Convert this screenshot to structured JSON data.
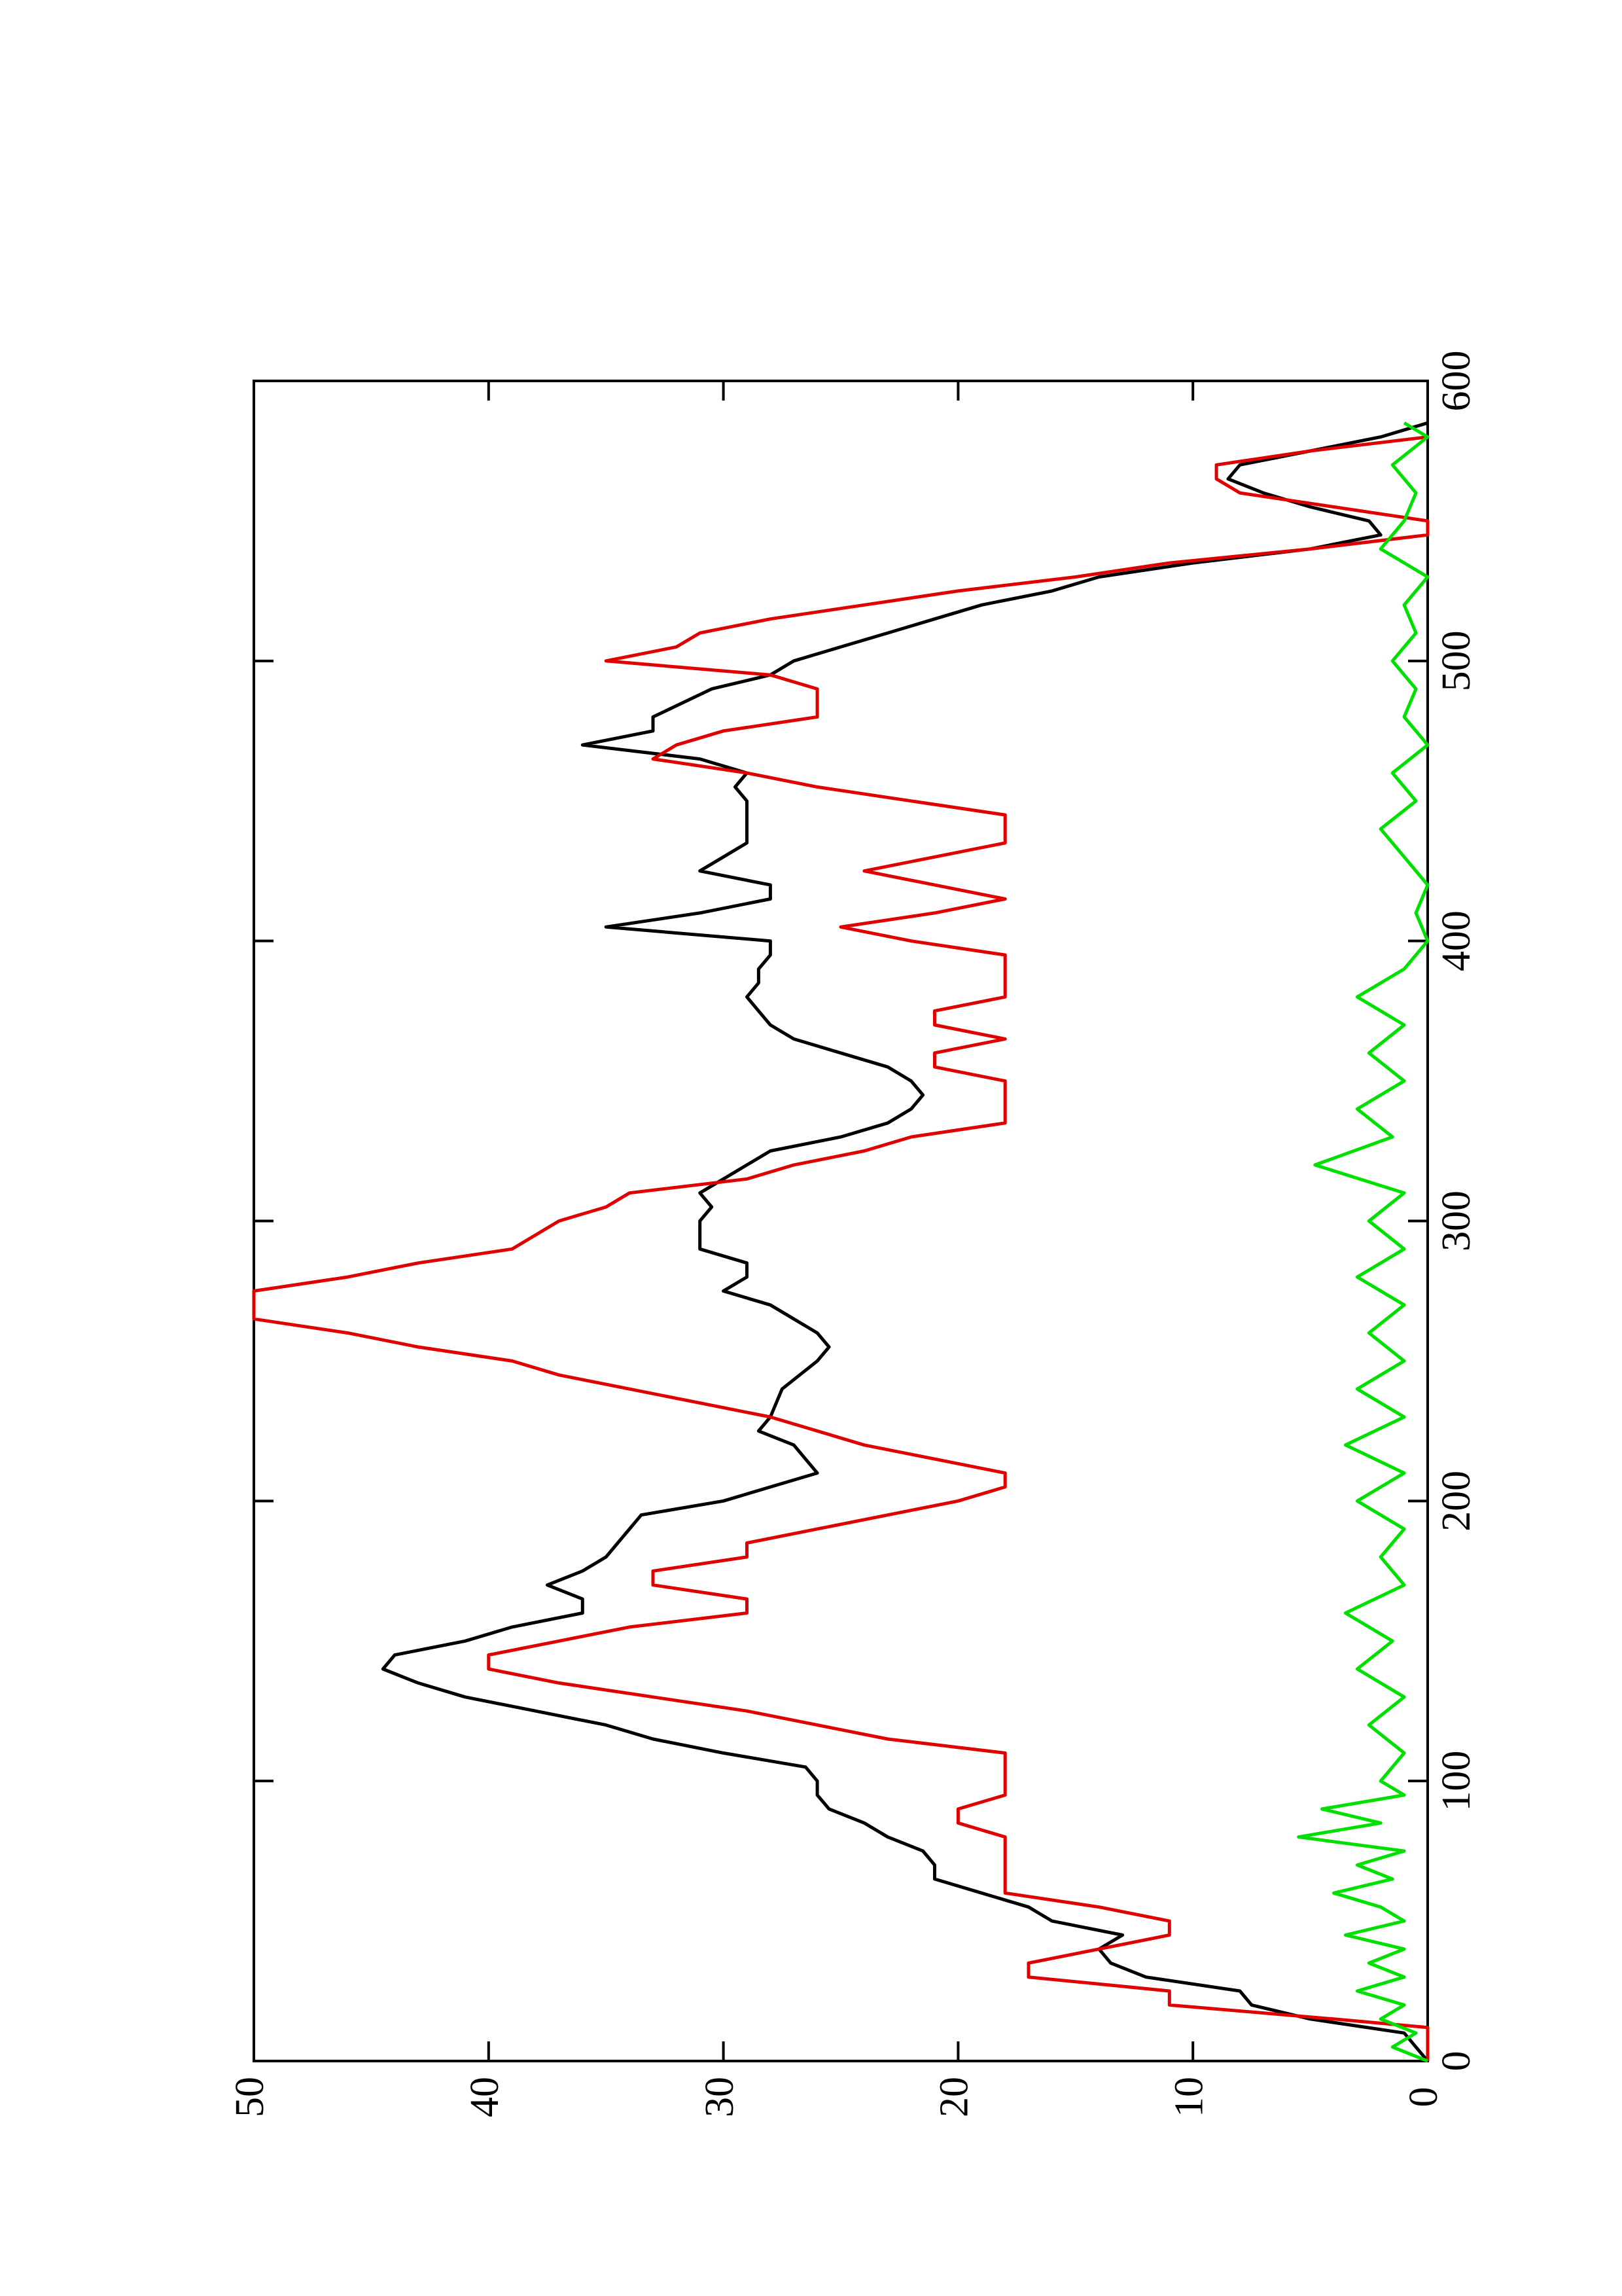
{
  "chart_data": {
    "type": "line",
    "xlim": [
      0,
      600
    ],
    "xticks": [
      0,
      100,
      200,
      300,
      400,
      500,
      600
    ],
    "ylim": [
      0,
      50
    ],
    "yticks": [
      0,
      10,
      20,
      30,
      40,
      50
    ],
    "series": [
      {
        "color": "#000000",
        "x": [
          0,
          10,
          15,
          20,
          25,
          30,
          35,
          40,
          45,
          50,
          55,
          60,
          65,
          70,
          75,
          80,
          85,
          90,
          95,
          100,
          105,
          110,
          115,
          120,
          125,
          130,
          135,
          140,
          145,
          150,
          155,
          160,
          165,
          170,
          175,
          180,
          185,
          190,
          195,
          200,
          205,
          210,
          220,
          225,
          230,
          240,
          250,
          255,
          260,
          265,
          270,
          275,
          280,
          285,
          290,
          300,
          305,
          310,
          315,
          320,
          325,
          330,
          335,
          340,
          345,
          350,
          355,
          360,
          365,
          370,
          375,
          380,
          385,
          390,
          395,
          400,
          405,
          410,
          415,
          420,
          425,
          430,
          435,
          440,
          450,
          455,
          460,
          465,
          470,
          475,
          480,
          490,
          495,
          500,
          505,
          510,
          515,
          520,
          525,
          530,
          535,
          540,
          545,
          550,
          555,
          560,
          565,
          570,
          575,
          580,
          585
        ],
        "values": [
          0,
          1,
          5,
          7.5,
          8,
          12,
          13.5,
          14,
          13,
          16,
          17,
          19,
          21,
          21,
          21.5,
          23,
          24,
          25.5,
          26,
          26,
          26.5,
          30,
          33,
          35,
          38,
          41,
          43,
          44.5,
          44,
          41,
          39,
          36,
          36,
          37.5,
          36,
          35,
          34.5,
          34,
          33.5,
          30,
          28,
          26,
          27,
          28.5,
          28,
          27.5,
          26,
          25.5,
          26,
          27,
          28,
          30,
          29,
          29,
          31,
          31,
          30.5,
          31,
          30,
          29,
          28,
          25,
          23,
          22,
          21.5,
          22,
          23,
          25,
          27,
          28,
          28.5,
          29,
          28.5,
          28.5,
          28,
          28,
          35,
          31,
          28,
          28,
          31,
          30,
          29,
          29,
          29,
          29.5,
          29,
          31,
          36,
          33,
          33,
          30.5,
          28,
          27,
          25,
          23,
          21,
          19,
          16,
          14,
          10,
          5,
          2,
          2.5,
          5,
          7,
          8.5,
          8,
          5,
          2,
          0
        ]
      },
      {
        "color": "#e00000",
        "x": [
          0,
          12,
          15,
          20,
          25,
          30,
          35,
          40,
          45,
          50,
          55,
          60,
          65,
          80,
          85,
          90,
          95,
          110,
          115,
          120,
          125,
          130,
          135,
          140,
          145,
          150,
          155,
          160,
          165,
          170,
          175,
          180,
          185,
          190,
          195,
          200,
          205,
          210,
          215,
          220,
          230,
          235,
          240,
          245,
          250,
          255,
          260,
          265,
          275,
          280,
          285,
          290,
          300,
          305,
          310,
          315,
          320,
          325,
          330,
          335,
          350,
          355,
          360,
          365,
          370,
          375,
          380,
          395,
          400,
          405,
          410,
          415,
          420,
          425,
          430,
          435,
          445,
          450,
          455,
          460,
          465,
          470,
          475,
          480,
          490,
          495,
          500,
          505,
          510,
          515,
          520,
          525,
          530,
          535,
          540,
          545,
          550,
          555,
          560,
          565,
          570,
          575,
          580
        ],
        "values": [
          0,
          0,
          4,
          11,
          11,
          17,
          17,
          14,
          11,
          11,
          14,
          18,
          18,
          18,
          20,
          20,
          18,
          18,
          23,
          26,
          29,
          33,
          37,
          40,
          40,
          37,
          34,
          29,
          29,
          33,
          33,
          29,
          29,
          26,
          23,
          20,
          18,
          18,
          21,
          24,
          28,
          31,
          34,
          37,
          39,
          43,
          46,
          50,
          50,
          46,
          43,
          39,
          37,
          35,
          34,
          29,
          27,
          24,
          22,
          18,
          18,
          21,
          21,
          18,
          21,
          21,
          18,
          18,
          22,
          25,
          21,
          18,
          21,
          24,
          21,
          18,
          18,
          22,
          26,
          29,
          33,
          32,
          30,
          26,
          26,
          28,
          35,
          32,
          31,
          28,
          24,
          20,
          15,
          11,
          5,
          0,
          0,
          4,
          8,
          9,
          9,
          5,
          0
        ]
      },
      {
        "color": "#00e000",
        "x": [
          0,
          5,
          10,
          15,
          20,
          25,
          30,
          35,
          40,
          45,
          50,
          55,
          60,
          65,
          70,
          75,
          80,
          85,
          90,
          95,
          100,
          110,
          120,
          130,
          140,
          150,
          160,
          170,
          180,
          190,
          200,
          210,
          220,
          230,
          240,
          250,
          260,
          270,
          280,
          290,
          300,
          310,
          320,
          330,
          340,
          350,
          360,
          370,
          380,
          390,
          400,
          410,
          420,
          430,
          440,
          450,
          460,
          470,
          480,
          490,
          500,
          510,
          520,
          530,
          540,
          550,
          560,
          570,
          580,
          585
        ],
        "values": [
          0,
          1.5,
          0.5,
          2,
          1,
          3,
          1,
          2.5,
          1,
          3.5,
          1,
          2,
          4,
          1.5,
          3,
          1,
          5.5,
          2,
          4.5,
          1,
          2,
          1,
          2.5,
          1,
          3,
          1.5,
          3.5,
          1,
          2,
          1,
          3,
          1,
          3.5,
          1,
          3,
          1,
          2.5,
          1,
          3,
          1,
          2.5,
          1,
          4.8,
          1.5,
          3,
          1,
          2.5,
          1,
          3,
          1,
          0,
          0.5,
          0,
          1,
          2,
          0.5,
          1.5,
          0,
          1,
          0.5,
          1.5,
          0.5,
          1,
          0,
          2,
          1,
          0.5,
          1.5,
          0,
          1
        ]
      }
    ]
  }
}
